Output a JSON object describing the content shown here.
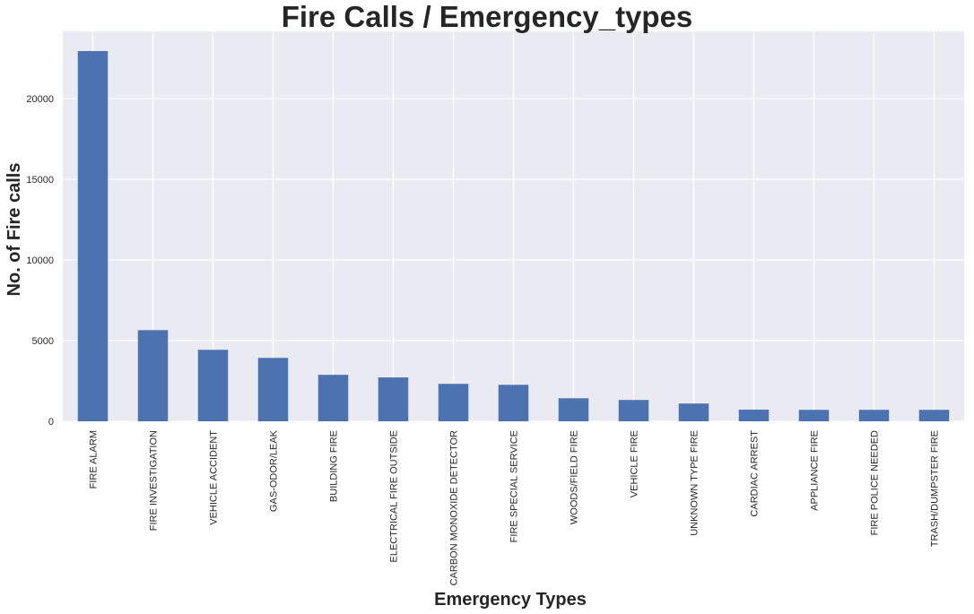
{
  "chart_data": {
    "type": "bar",
    "title": "Fire Calls / Emergency_types",
    "xlabel": "Emergency Types",
    "ylabel": "No. of Fire calls",
    "categories": [
      "FIRE ALARM",
      "FIRE INVESTIGATION",
      "VEHICLE ACCIDENT",
      "GAS-ODOR/LEAK",
      "BUILDING FIRE",
      "ELECTRICAL FIRE OUTSIDE",
      "CARBON MONOXIDE DETECTOR",
      "FIRE SPECIAL SERVICE",
      "WOODS/FIELD FIRE",
      "VEHICLE FIRE",
      "UNKNOWN TYPE FIRE",
      "CARDIAC ARREST",
      "APPLIANCE FIRE",
      "FIRE POLICE NEEDED",
      "TRASH/DUMPSTER FIRE"
    ],
    "values": [
      22950,
      5650,
      4430,
      3930,
      2880,
      2720,
      2320,
      2260,
      1430,
      1320,
      1100,
      720,
      710,
      710,
      710
    ],
    "ylim": [
      0,
      24170
    ],
    "yticks": [
      0,
      5000,
      10000,
      15000,
      20000
    ],
    "ytick_labels": [
      "0",
      "5000",
      "10000",
      "15000",
      "20000"
    ],
    "grid": true,
    "legend": "none",
    "colors": {
      "bar": "#4c72b0",
      "plot_background": "#eaeaf2",
      "grid": "#ffffff",
      "text": "#262626"
    }
  }
}
